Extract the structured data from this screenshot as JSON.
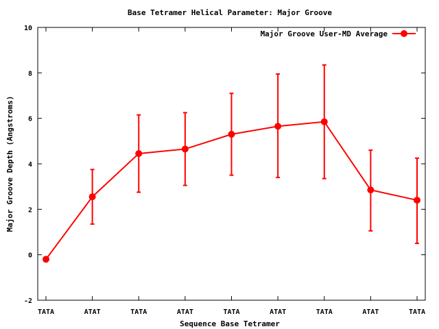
{
  "chart_data": {
    "type": "line",
    "title": "Base Tetramer Helical Parameter: Major Groove",
    "xlabel": "Sequence Base Tetramer",
    "ylabel": "Major Groove Depth (Angstroms)",
    "categories": [
      "TATA",
      "ATAT",
      "TATA",
      "ATAT",
      "TATA",
      "ATAT",
      "TATA",
      "ATAT",
      "TATA"
    ],
    "ylim": [
      -2,
      10
    ],
    "yticks": [
      -2,
      0,
      2,
      4,
      6,
      8,
      10
    ],
    "grid": false,
    "legend_position": "top-right",
    "series": [
      {
        "name": "Major Groove User-MD Average",
        "color": "#ff0000",
        "values": [
          -0.2,
          2.55,
          4.45,
          4.65,
          5.3,
          5.65,
          5.85,
          2.85,
          2.4
        ],
        "error_low": [
          null,
          1.35,
          2.75,
          3.05,
          3.5,
          3.4,
          3.35,
          1.05,
          0.5
        ],
        "error_high": [
          null,
          3.75,
          6.15,
          6.25,
          7.1,
          7.95,
          8.35,
          4.6,
          4.25
        ]
      }
    ]
  }
}
